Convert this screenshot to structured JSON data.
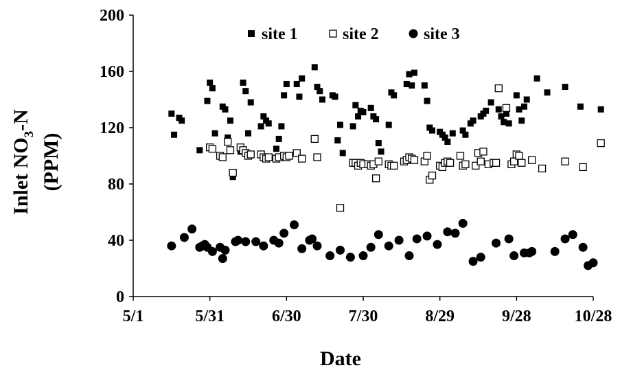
{
  "chart_data": {
    "type": "scatter",
    "title": "",
    "xlabel": "Date",
    "ylabel_line1": "Inlet NO",
    "ylabel_sub": "3",
    "ylabel_line1_suffix": "-N",
    "ylabel_line2": "(PPM)",
    "x_ticks": [
      "5/1",
      "5/31",
      "6/30",
      "7/30",
      "8/29",
      "9/28",
      "10/28"
    ],
    "xlim": [
      "5/1",
      "10/28"
    ],
    "y_ticks": [
      "0",
      "40",
      "80",
      "120",
      "160",
      "200"
    ],
    "ylim": [
      0,
      200
    ],
    "grid": false,
    "legend_position": "top-center",
    "series": [
      {
        "name": "site 1",
        "marker": "filled-square",
        "points": [
          [
            "5/16",
            130
          ],
          [
            "5/17",
            115
          ],
          [
            "5/19",
            127
          ],
          [
            "5/20",
            125
          ],
          [
            "5/27",
            104
          ],
          [
            "5/30",
            139
          ],
          [
            "5/31",
            152
          ],
          [
            "6/1",
            148
          ],
          [
            "6/2",
            116
          ],
          [
            "6/5",
            135
          ],
          [
            "6/6",
            133
          ],
          [
            "6/7",
            113
          ],
          [
            "6/8",
            125
          ],
          [
            "6/9",
            85
          ],
          [
            "6/12",
            103
          ],
          [
            "6/13",
            152
          ],
          [
            "6/14",
            146
          ],
          [
            "6/15",
            116
          ],
          [
            "6/16",
            138
          ],
          [
            "6/20",
            121
          ],
          [
            "6/21",
            128
          ],
          [
            "6/22",
            125
          ],
          [
            "6/23",
            123
          ],
          [
            "6/26",
            105
          ],
          [
            "6/27",
            112
          ],
          [
            "6/28",
            121
          ],
          [
            "6/29",
            143
          ],
          [
            "6/30",
            151
          ],
          [
            "7/4",
            151
          ],
          [
            "7/5",
            142
          ],
          [
            "7/6",
            155
          ],
          [
            "7/11",
            163
          ],
          [
            "7/12",
            149
          ],
          [
            "7/13",
            146
          ],
          [
            "7/14",
            140
          ],
          [
            "7/18",
            143
          ],
          [
            "7/19",
            142
          ],
          [
            "7/20",
            111
          ],
          [
            "7/21",
            122
          ],
          [
            "7/22",
            102
          ],
          [
            "7/26",
            121
          ],
          [
            "7/27",
            136
          ],
          [
            "7/28",
            128
          ],
          [
            "7/29",
            132
          ],
          [
            "7/30",
            131
          ],
          [
            "8/2",
            134
          ],
          [
            "8/3",
            128
          ],
          [
            "8/4",
            126
          ],
          [
            "8/5",
            109
          ],
          [
            "8/6",
            103
          ],
          [
            "8/9",
            122
          ],
          [
            "8/10",
            145
          ],
          [
            "8/11",
            143
          ],
          [
            "8/16",
            151
          ],
          [
            "8/17",
            158
          ],
          [
            "8/18",
            150
          ],
          [
            "8/19",
            159
          ],
          [
            "8/23",
            150
          ],
          [
            "8/24",
            139
          ],
          [
            "8/25",
            120
          ],
          [
            "8/26",
            118
          ],
          [
            "8/29",
            117
          ],
          [
            "8/30",
            115
          ],
          [
            "8/31",
            113
          ],
          [
            "9/1",
            110
          ],
          [
            "9/3",
            116
          ],
          [
            "9/7",
            118
          ],
          [
            "9/8",
            115
          ],
          [
            "9/10",
            123
          ],
          [
            "9/11",
            125
          ],
          [
            "9/14",
            128
          ],
          [
            "9/15",
            130
          ],
          [
            "9/16",
            132
          ],
          [
            "9/18",
            138
          ],
          [
            "9/21",
            133
          ],
          [
            "9/22",
            128
          ],
          [
            "9/23",
            124
          ],
          [
            "9/24",
            130
          ],
          [
            "9/25",
            123
          ],
          [
            "9/28",
            143
          ],
          [
            "9/29",
            133
          ],
          [
            "9/30",
            125
          ],
          [
            "10/1",
            135
          ],
          [
            "10/2",
            140
          ],
          [
            "10/6",
            155
          ],
          [
            "10/10",
            145
          ],
          [
            "10/17",
            149
          ],
          [
            "10/23",
            135
          ],
          [
            "10/31",
            133
          ]
        ]
      },
      {
        "name": "site 2",
        "marker": "open-square",
        "points": [
          [
            "5/31",
            106
          ],
          [
            "6/1",
            105
          ],
          [
            "6/4",
            100
          ],
          [
            "6/5",
            99
          ],
          [
            "6/7",
            110
          ],
          [
            "6/8",
            104
          ],
          [
            "6/9",
            88
          ],
          [
            "6/12",
            106
          ],
          [
            "6/13",
            104
          ],
          [
            "6/14",
            102
          ],
          [
            "6/15",
            100
          ],
          [
            "6/16",
            101
          ],
          [
            "6/20",
            101
          ],
          [
            "6/21",
            99
          ],
          [
            "6/22",
            98
          ],
          [
            "6/23",
            99
          ],
          [
            "6/26",
            98
          ],
          [
            "6/27",
            99
          ],
          [
            "6/29",
            100
          ],
          [
            "6/30",
            99
          ],
          [
            "7/1",
            100
          ],
          [
            "7/4",
            102
          ],
          [
            "7/6",
            98
          ],
          [
            "7/11",
            112
          ],
          [
            "7/12",
            99
          ],
          [
            "7/21",
            63
          ],
          [
            "7/26",
            95
          ],
          [
            "7/27",
            95
          ],
          [
            "7/28",
            93
          ],
          [
            "7/29",
            95
          ],
          [
            "7/30",
            94
          ],
          [
            "8/1",
            94
          ],
          [
            "8/2",
            93
          ],
          [
            "8/3",
            94
          ],
          [
            "8/4",
            84
          ],
          [
            "8/5",
            96
          ],
          [
            "8/9",
            94
          ],
          [
            "8/10",
            93
          ],
          [
            "8/11",
            93
          ],
          [
            "8/15",
            96
          ],
          [
            "8/16",
            97
          ],
          [
            "8/17",
            99
          ],
          [
            "8/18",
            98
          ],
          [
            "8/19",
            97
          ],
          [
            "8/23",
            96
          ],
          [
            "8/24",
            100
          ],
          [
            "8/25",
            83
          ],
          [
            "8/26",
            86
          ],
          [
            "8/29",
            93
          ],
          [
            "8/30",
            92
          ],
          [
            "8/31",
            95
          ],
          [
            "9/1",
            96
          ],
          [
            "9/2",
            95
          ],
          [
            "9/6",
            100
          ],
          [
            "9/7",
            93
          ],
          [
            "9/8",
            94
          ],
          [
            "9/12",
            93
          ],
          [
            "9/13",
            102
          ],
          [
            "9/14",
            96
          ],
          [
            "9/15",
            103
          ],
          [
            "9/17",
            94
          ],
          [
            "9/19",
            95
          ],
          [
            "9/20",
            95
          ],
          [
            "9/21",
            148
          ],
          [
            "9/24",
            134
          ],
          [
            "9/26",
            94
          ],
          [
            "9/27",
            96
          ],
          [
            "9/28",
            101
          ],
          [
            "9/29",
            100
          ],
          [
            "9/30",
            95
          ],
          [
            "10/4",
            97
          ],
          [
            "10/8",
            91
          ],
          [
            "10/17",
            96
          ],
          [
            "10/24",
            92
          ],
          [
            "10/31",
            109
          ]
        ]
      },
      {
        "name": "site 3",
        "marker": "filled-circle",
        "points": [
          [
            "5/16",
            36
          ],
          [
            "5/21",
            42
          ],
          [
            "5/24",
            48
          ],
          [
            "5/27",
            35
          ],
          [
            "5/28",
            36
          ],
          [
            "5/29",
            37
          ],
          [
            "5/30",
            35
          ],
          [
            "6/1",
            32
          ],
          [
            "6/4",
            35
          ],
          [
            "6/5",
            27
          ],
          [
            "6/6",
            33
          ],
          [
            "6/10",
            39
          ],
          [
            "6/11",
            40
          ],
          [
            "6/14",
            39
          ],
          [
            "6/18",
            39
          ],
          [
            "6/21",
            36
          ],
          [
            "6/25",
            40
          ],
          [
            "6/27",
            38
          ],
          [
            "6/29",
            45
          ],
          [
            "7/3",
            51
          ],
          [
            "7/6",
            34
          ],
          [
            "7/9",
            40
          ],
          [
            "7/10",
            41
          ],
          [
            "7/12",
            36
          ],
          [
            "7/17",
            29
          ],
          [
            "7/21",
            33
          ],
          [
            "7/25",
            28
          ],
          [
            "7/30",
            29
          ],
          [
            "8/2",
            35
          ],
          [
            "8/5",
            44
          ],
          [
            "8/9",
            36
          ],
          [
            "8/13",
            40
          ],
          [
            "8/17",
            29
          ],
          [
            "8/20",
            41
          ],
          [
            "8/24",
            43
          ],
          [
            "8/28",
            37
          ],
          [
            "9/1",
            46
          ],
          [
            "9/4",
            45
          ],
          [
            "9/7",
            52
          ],
          [
            "9/11",
            25
          ],
          [
            "9/14",
            28
          ],
          [
            "9/20",
            38
          ],
          [
            "9/25",
            41
          ],
          [
            "9/27",
            29
          ],
          [
            "10/1",
            31
          ],
          [
            "10/3",
            31
          ],
          [
            "10/4",
            32
          ],
          [
            "10/13",
            32
          ],
          [
            "10/17",
            41
          ],
          [
            "10/20",
            44
          ],
          [
            "10/24",
            35
          ],
          [
            "10/26",
            22
          ],
          [
            "10/28",
            24
          ]
        ]
      }
    ]
  }
}
